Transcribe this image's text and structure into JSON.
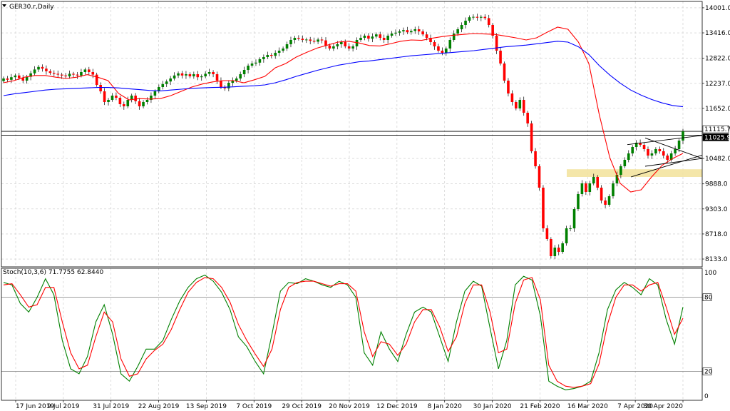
{
  "chart_data": {
    "type": "candlestick",
    "title": "GER30.r,Daily",
    "y_ticks": [
      "14001.0",
      "13416.0",
      "12822.0",
      "12237.0",
      "11652.0",
      "10482.0",
      "9888.0",
      "9303.0",
      "8718.0",
      "8133.0"
    ],
    "price_labels": [
      "11115.7",
      "11025.9"
    ],
    "ylim": [
      7950,
      14150
    ],
    "x_ticks": [
      "17 Jun 2019",
      "9 Jul 2019",
      "31 Jul 2019",
      "22 Aug 2019",
      "13 Sep 2019",
      "7 Oct 2019",
      "29 Oct 2019",
      "20 Nov 2019",
      "12 Dec 2019",
      "8 Jan 2020",
      "30 Jan 2020",
      "21 Feb 2020",
      "16 Mar 2020",
      "7 Apr 2020",
      "30 Apr 2020"
    ],
    "candles_close": [
      12350,
      12320,
      12380,
      12420,
      12360,
      12300,
      12390,
      12470,
      12560,
      12620,
      12580,
      12520,
      12480,
      12460,
      12440,
      12420,
      12400,
      12460,
      12440,
      12420,
      12500,
      12560,
      12500,
      12440,
      12200,
      12050,
      11800,
      11850,
      11950,
      11900,
      11750,
      11700,
      11850,
      11950,
      11820,
      11700,
      11800,
      11850,
      11950,
      12050,
      12150,
      12220,
      12280,
      12350,
      12420,
      12470,
      12420,
      12450,
      12400,
      12450,
      12380,
      12400,
      12460,
      12500,
      12450,
      12300,
      12150,
      12120,
      12250,
      12300,
      12350,
      12450,
      12550,
      12650,
      12700,
      12720,
      12800,
      12850,
      12900,
      12880,
      12950,
      13000,
      13050,
      13150,
      13250,
      13300,
      13280,
      13250,
      13260,
      13230,
      13210,
      13260,
      13240,
      13120,
      13050,
      13100,
      13150,
      13200,
      13100,
      13050,
      13100,
      13250,
      13300,
      13350,
      13280,
      13330,
      13380,
      13300,
      13250,
      13350,
      13400,
      13420,
      13450,
      13480,
      13430,
      13460,
      13500,
      13450,
      13380,
      13300,
      13200,
      13100,
      13000,
      12950,
      13050,
      13250,
      13400,
      13500,
      13600,
      13700,
      13780,
      13790,
      13770,
      13790,
      13760,
      13600,
      13350,
      13000,
      12700,
      12300,
      12000,
      11800,
      11650,
      11850,
      11550,
      11300,
      10650,
      10300,
      9800,
      8850,
      8600,
      8200,
      8400,
      8300,
      8500,
      8850,
      8850,
      9300,
      9650,
      9900,
      9700,
      9900,
      10050,
      9800,
      9500,
      9400,
      9600,
      9900,
      10100,
      10300,
      10450,
      10600,
      10750,
      10850,
      10800,
      10700,
      10550,
      10600,
      10700,
      10650,
      10550,
      10450,
      10600,
      10700,
      10900,
      11115.7
    ],
    "series": [
      {
        "name": "MA fast",
        "color": "#ff0000",
        "values": [
          12250,
          12300,
          12380,
          12420,
          12420,
          12380,
          12350,
          12380,
          12440,
          12380,
          12300,
          12000,
          11850,
          11880,
          11870,
          11880,
          11950,
          12050,
          12150,
          12220,
          12270,
          12300,
          12300,
          12250,
          12320,
          12400,
          12600,
          12700,
          12850,
          12960,
          13060,
          13130,
          13200,
          13220,
          13180,
          13120,
          13110,
          13160,
          13220,
          13250,
          13240,
          13290,
          13330,
          13360,
          13380,
          13400,
          13390,
          13380,
          13340,
          13300,
          13250,
          13300,
          13430,
          13550,
          13500,
          13200,
          12700,
          11500,
          10500,
          9900,
          9700,
          9750,
          10050,
          10320,
          10480,
          10600
        ]
      },
      {
        "name": "MA slow",
        "color": "#0000ff",
        "values": [
          11950,
          11990,
          12020,
          12050,
          12080,
          12100,
          12110,
          12120,
          12130,
          12140,
          12140,
          12130,
          12110,
          12090,
          12070,
          12060,
          12080,
          12100,
          12120,
          12130,
          12140,
          12145,
          12155,
          12170,
          12180,
          12200,
          12250,
          12320,
          12400,
          12470,
          12540,
          12600,
          12660,
          12700,
          12740,
          12760,
          12790,
          12820,
          12850,
          12880,
          12900,
          12920,
          12940,
          12960,
          12980,
          13000,
          13030,
          13060,
          13090,
          13110,
          13130,
          13160,
          13190,
          13220,
          13200,
          13090,
          12910,
          12650,
          12430,
          12240,
          12080,
          11960,
          11860,
          11780,
          11720,
          11690
        ]
      }
    ],
    "annotations": {
      "support_zone": [
        10050,
        10230
      ],
      "horizontal_lines": [
        11115.7,
        11025.9
      ]
    },
    "stochastic": {
      "label": "Stoch(10,3,6) 71.7755 62.8440",
      "y_ticks": [
        "100",
        "80",
        "20",
        "0"
      ],
      "levels": [
        80,
        20
      ],
      "ylim": [
        0,
        100
      ],
      "series": [
        {
          "name": "%K",
          "color": "#008000",
          "values": [
            92,
            90,
            75,
            68,
            80,
            95,
            82,
            45,
            22,
            18,
            32,
            60,
            74,
            50,
            18,
            12,
            24,
            38,
            38,
            45,
            62,
            77,
            88,
            95,
            98,
            93,
            84,
            70,
            48,
            40,
            28,
            18,
            50,
            85,
            92,
            91,
            95,
            93,
            90,
            88,
            93,
            90,
            80,
            35,
            25,
            52,
            38,
            28,
            50,
            68,
            72,
            68,
            48,
            28,
            60,
            85,
            93,
            89,
            55,
            22,
            45,
            90,
            97,
            94,
            65,
            12,
            8,
            5,
            6,
            8,
            12,
            35,
            70,
            86,
            92,
            88,
            82,
            95,
            90,
            62,
            42,
            72
          ]
        },
        {
          "name": "%D",
          "color": "#ff0000",
          "values": [
            90,
            91,
            82,
            72,
            74,
            88,
            88,
            60,
            35,
            22,
            25,
            48,
            68,
            60,
            30,
            16,
            18,
            30,
            37,
            42,
            54,
            70,
            84,
            92,
            96,
            95,
            88,
            76,
            58,
            45,
            34,
            24,
            38,
            70,
            88,
            92,
            93,
            93,
            91,
            89,
            91,
            91,
            85,
            52,
            32,
            44,
            42,
            33,
            42,
            60,
            70,
            70,
            56,
            36,
            48,
            75,
            90,
            90,
            68,
            35,
            38,
            75,
            94,
            96,
            78,
            25,
            12,
            8,
            7,
            8,
            10,
            26,
            58,
            80,
            90,
            90,
            85,
            90,
            92,
            72,
            50,
            63
          ]
        }
      ]
    }
  }
}
